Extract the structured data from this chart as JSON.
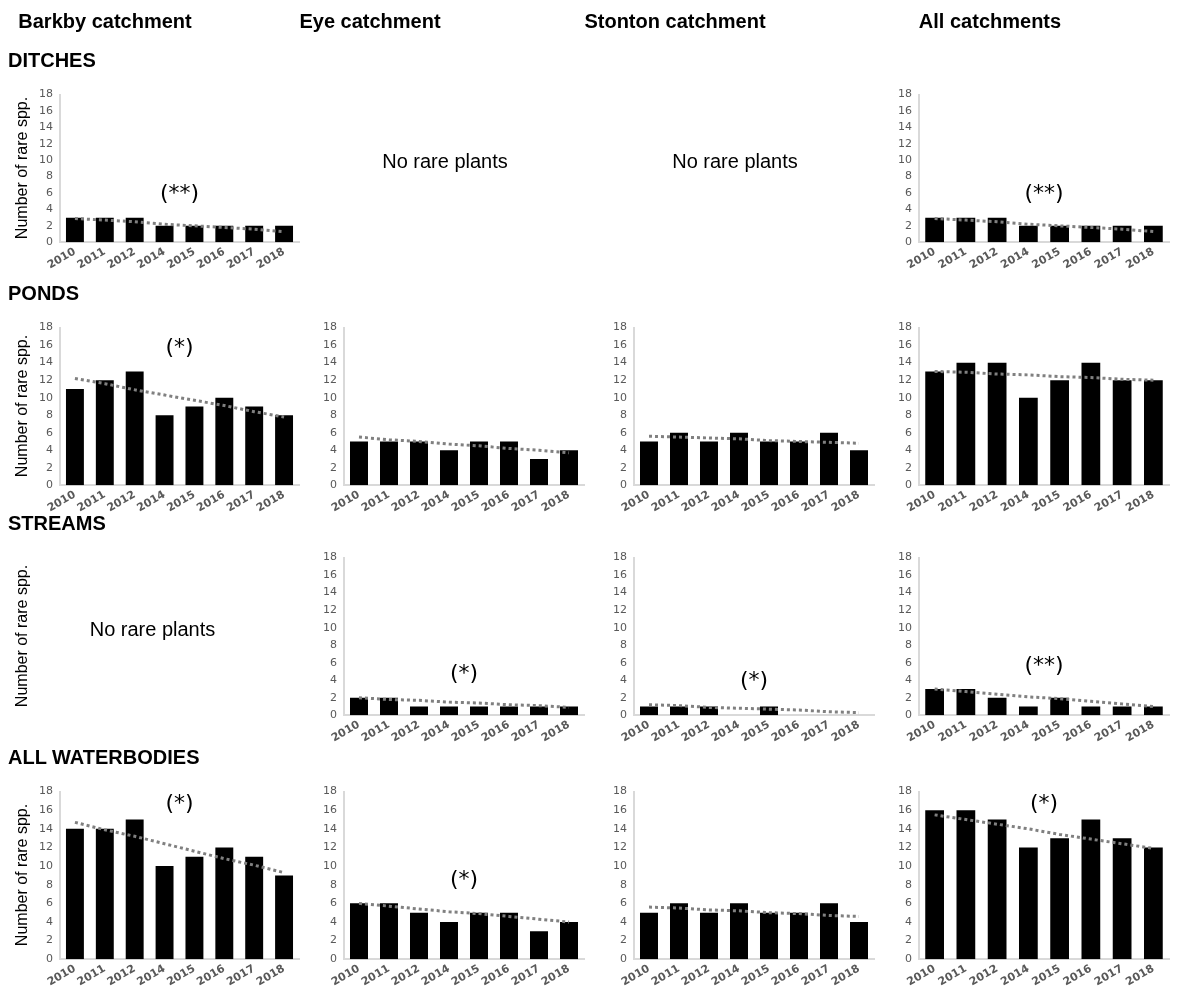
{
  "chart_data": [
    {
      "type": "other",
      "annotations": [
        "Barkby catchment",
        "Eye catchment",
        "Stonton catchment",
        "All catchments"
      ]
    },
    {
      "type": "bar",
      "title": "DITCHES",
      "ylabel": "Number of rare spp.",
      "categories": [
        "2010",
        "2011",
        "2012",
        "2014",
        "2015",
        "2016",
        "2017",
        "2018"
      ],
      "ylim": [
        0,
        18
      ],
      "yticks": [
        0,
        2,
        4,
        6,
        8,
        10,
        12,
        14,
        16,
        18
      ],
      "grid": false,
      "annotations": [
        "(**)"
      ],
      "series": [
        {
          "color": "#000000",
          "values": [
            3,
            3,
            3,
            2,
            2,
            2,
            2,
            2
          ]
        },
        {
          "type": "line",
          "color": "#808080",
          "line_style": "dotted",
          "marker": "none",
          "values": [
            2.9,
            2.7,
            2.5,
            2.2,
            2.0,
            1.8,
            1.6,
            1.3
          ]
        }
      ]
    },
    {
      "type": "other",
      "annotations": [
        "No rare plants"
      ]
    },
    {
      "type": "other",
      "annotations": [
        "No rare plants"
      ]
    },
    {
      "type": "bar",
      "categories": [
        "2010",
        "2011",
        "2012",
        "2014",
        "2015",
        "2016",
        "2017",
        "2018"
      ],
      "ylim": [
        0,
        18
      ],
      "yticks": [
        0,
        2,
        4,
        6,
        8,
        10,
        12,
        14,
        16,
        18
      ],
      "grid": false,
      "annotations": [
        "(**)"
      ],
      "series": [
        {
          "color": "#000000",
          "values": [
            3,
            3,
            3,
            2,
            2,
            2,
            2,
            2
          ]
        },
        {
          "type": "line",
          "color": "#808080",
          "line_style": "dotted",
          "marker": "none",
          "values": [
            2.9,
            2.7,
            2.5,
            2.2,
            2.0,
            1.8,
            1.6,
            1.3
          ]
        }
      ]
    },
    {
      "type": "bar",
      "title": "PONDS",
      "ylabel": "Number of rare spp.",
      "categories": [
        "2010",
        "2011",
        "2012",
        "2014",
        "2015",
        "2016",
        "2017",
        "2018"
      ],
      "ylim": [
        0,
        18
      ],
      "yticks": [
        0,
        2,
        4,
        6,
        8,
        10,
        12,
        14,
        16,
        18
      ],
      "grid": false,
      "annotations": [
        "(*)"
      ],
      "series": [
        {
          "color": "#000000",
          "values": [
            11,
            12,
            13,
            8,
            9,
            10,
            9,
            8
          ]
        },
        {
          "type": "line",
          "color": "#808080",
          "line_style": "dotted",
          "marker": "none",
          "values": [
            12.2,
            11.6,
            10.9,
            10.3,
            9.7,
            9.1,
            8.4,
            7.8
          ]
        }
      ]
    },
    {
      "type": "bar",
      "categories": [
        "2010",
        "2011",
        "2012",
        "2014",
        "2015",
        "2016",
        "2017",
        "2018"
      ],
      "ylim": [
        0,
        18
      ],
      "yticks": [
        0,
        2,
        4,
        6,
        8,
        10,
        12,
        14,
        16,
        18
      ],
      "grid": false,
      "series": [
        {
          "color": "#000000",
          "values": [
            5,
            5,
            5,
            4,
            5,
            5,
            3,
            4
          ]
        },
        {
          "type": "line",
          "color": "#808080",
          "line_style": "dotted",
          "marker": "none",
          "values": [
            5.5,
            5.2,
            5.0,
            4.7,
            4.5,
            4.2,
            4.0,
            3.7
          ]
        }
      ]
    },
    {
      "type": "bar",
      "categories": [
        "2010",
        "2011",
        "2012",
        "2014",
        "2015",
        "2016",
        "2017",
        "2018"
      ],
      "ylim": [
        0,
        18
      ],
      "yticks": [
        0,
        2,
        4,
        6,
        8,
        10,
        12,
        14,
        16,
        18
      ],
      "grid": false,
      "series": [
        {
          "color": "#000000",
          "values": [
            5,
            6,
            5,
            6,
            5,
            5,
            6,
            4
          ]
        },
        {
          "type": "line",
          "color": "#808080",
          "line_style": "dotted",
          "marker": "none",
          "values": [
            5.6,
            5.5,
            5.4,
            5.3,
            5.1,
            5.0,
            4.9,
            4.8
          ]
        }
      ]
    },
    {
      "type": "bar",
      "categories": [
        "2010",
        "2011",
        "2012",
        "2014",
        "2015",
        "2016",
        "2017",
        "2018"
      ],
      "ylim": [
        0,
        18
      ],
      "yticks": [
        0,
        2,
        4,
        6,
        8,
        10,
        12,
        14,
        16,
        18
      ],
      "grid": false,
      "series": [
        {
          "color": "#000000",
          "values": [
            13,
            14,
            14,
            10,
            12,
            14,
            12,
            12
          ]
        },
        {
          "type": "line",
          "color": "#808080",
          "line_style": "dotted",
          "marker": "none",
          "values": [
            13.0,
            12.9,
            12.7,
            12.6,
            12.4,
            12.3,
            12.1,
            12.0
          ]
        }
      ]
    },
    {
      "type": "other",
      "title": "STREAMS",
      "ylabel": "Number of rare spp.",
      "annotations": [
        "No rare plants"
      ]
    },
    {
      "type": "bar",
      "categories": [
        "2010",
        "2011",
        "2012",
        "2014",
        "2015",
        "2016",
        "2017",
        "2018"
      ],
      "ylim": [
        0,
        18
      ],
      "yticks": [
        0,
        2,
        4,
        6,
        8,
        10,
        12,
        14,
        16,
        18
      ],
      "grid": false,
      "annotations": [
        "(*)"
      ],
      "series": [
        {
          "color": "#000000",
          "values": [
            2,
            2,
            1,
            1,
            1,
            1,
            1,
            1
          ]
        },
        {
          "type": "line",
          "color": "#808080",
          "line_style": "dotted",
          "marker": "none",
          "values": [
            2.0,
            1.8,
            1.7,
            1.5,
            1.4,
            1.2,
            1.1,
            0.9
          ]
        }
      ]
    },
    {
      "type": "bar",
      "categories": [
        "2010",
        "2011",
        "2012",
        "2014",
        "2015",
        "2016",
        "2017",
        "2018"
      ],
      "ylim": [
        0,
        18
      ],
      "yticks": [
        0,
        2,
        4,
        6,
        8,
        10,
        12,
        14,
        16,
        18
      ],
      "grid": false,
      "annotations": [
        "(*)"
      ],
      "series": [
        {
          "color": "#000000",
          "values": [
            1,
            1,
            1,
            0,
            1,
            0,
            0,
            0
          ]
        },
        {
          "type": "line",
          "color": "#808080",
          "line_style": "dotted",
          "marker": "none",
          "values": [
            1.2,
            1.1,
            0.9,
            0.8,
            0.7,
            0.6,
            0.4,
            0.3
          ]
        }
      ]
    },
    {
      "type": "bar",
      "categories": [
        "2010",
        "2011",
        "2012",
        "2014",
        "2015",
        "2016",
        "2017",
        "2018"
      ],
      "ylim": [
        0,
        18
      ],
      "yticks": [
        0,
        2,
        4,
        6,
        8,
        10,
        12,
        14,
        16,
        18
      ],
      "grid": false,
      "annotations": [
        "(**)"
      ],
      "series": [
        {
          "color": "#000000",
          "values": [
            3,
            3,
            2,
            1,
            2,
            1,
            1,
            1
          ]
        },
        {
          "type": "line",
          "color": "#808080",
          "line_style": "dotted",
          "marker": "none",
          "values": [
            3.0,
            2.7,
            2.4,
            2.1,
            1.9,
            1.6,
            1.3,
            1.0
          ]
        }
      ]
    },
    {
      "type": "bar",
      "title": "ALL WATERBODIES",
      "ylabel": "Number of rare spp.",
      "categories": [
        "2010",
        "2011",
        "2012",
        "2014",
        "2015",
        "2016",
        "2017",
        "2018"
      ],
      "ylim": [
        0,
        18
      ],
      "yticks": [
        0,
        2,
        4,
        6,
        8,
        10,
        12,
        14,
        16,
        18
      ],
      "grid": false,
      "annotations": [
        "(*)"
      ],
      "series": [
        {
          "color": "#000000",
          "values": [
            14,
            14,
            15,
            10,
            11,
            12,
            11,
            9
          ]
        },
        {
          "type": "line",
          "color": "#808080",
          "line_style": "dotted",
          "marker": "none",
          "values": [
            14.7,
            13.9,
            13.2,
            12.4,
            11.6,
            10.8,
            10.1,
            9.3
          ]
        }
      ]
    },
    {
      "type": "bar",
      "categories": [
        "2010",
        "2011",
        "2012",
        "2014",
        "2015",
        "2016",
        "2017",
        "2018"
      ],
      "ylim": [
        0,
        18
      ],
      "yticks": [
        0,
        2,
        4,
        6,
        8,
        10,
        12,
        14,
        16,
        18
      ],
      "grid": false,
      "annotations": [
        "(*)"
      ],
      "series": [
        {
          "color": "#000000",
          "values": [
            6,
            6,
            5,
            4,
            5,
            5,
            3,
            4
          ]
        },
        {
          "type": "line",
          "color": "#808080",
          "line_style": "dotted",
          "marker": "none",
          "values": [
            6.0,
            5.7,
            5.4,
            5.1,
            4.9,
            4.6,
            4.3,
            4.0
          ]
        }
      ]
    },
    {
      "type": "bar",
      "categories": [
        "2010",
        "2011",
        "2012",
        "2014",
        "2015",
        "2016",
        "2017",
        "2018"
      ],
      "ylim": [
        0,
        18
      ],
      "yticks": [
        0,
        2,
        4,
        6,
        8,
        10,
        12,
        14,
        16,
        18
      ],
      "grid": false,
      "series": [
        {
          "color": "#000000",
          "values": [
            5,
            6,
            5,
            6,
            5,
            5,
            6,
            4
          ]
        },
        {
          "type": "line",
          "color": "#808080",
          "line_style": "dotted",
          "marker": "none",
          "values": [
            5.6,
            5.5,
            5.3,
            5.2,
            5.0,
            4.9,
            4.7,
            4.6
          ]
        }
      ]
    },
    {
      "type": "bar",
      "categories": [
        "2010",
        "2011",
        "2012",
        "2014",
        "2015",
        "2016",
        "2017",
        "2018"
      ],
      "ylim": [
        0,
        18
      ],
      "yticks": [
        0,
        2,
        4,
        6,
        8,
        10,
        12,
        14,
        16,
        18
      ],
      "grid": false,
      "annotations": [
        "(*)"
      ],
      "series": [
        {
          "color": "#000000",
          "values": [
            16,
            16,
            15,
            12,
            13,
            15,
            13,
            12
          ]
        },
        {
          "type": "line",
          "color": "#808080",
          "line_style": "dotted",
          "marker": "none",
          "values": [
            15.5,
            15.0,
            14.5,
            14.0,
            13.4,
            12.9,
            12.4,
            11.9
          ]
        }
      ]
    }
  ]
}
